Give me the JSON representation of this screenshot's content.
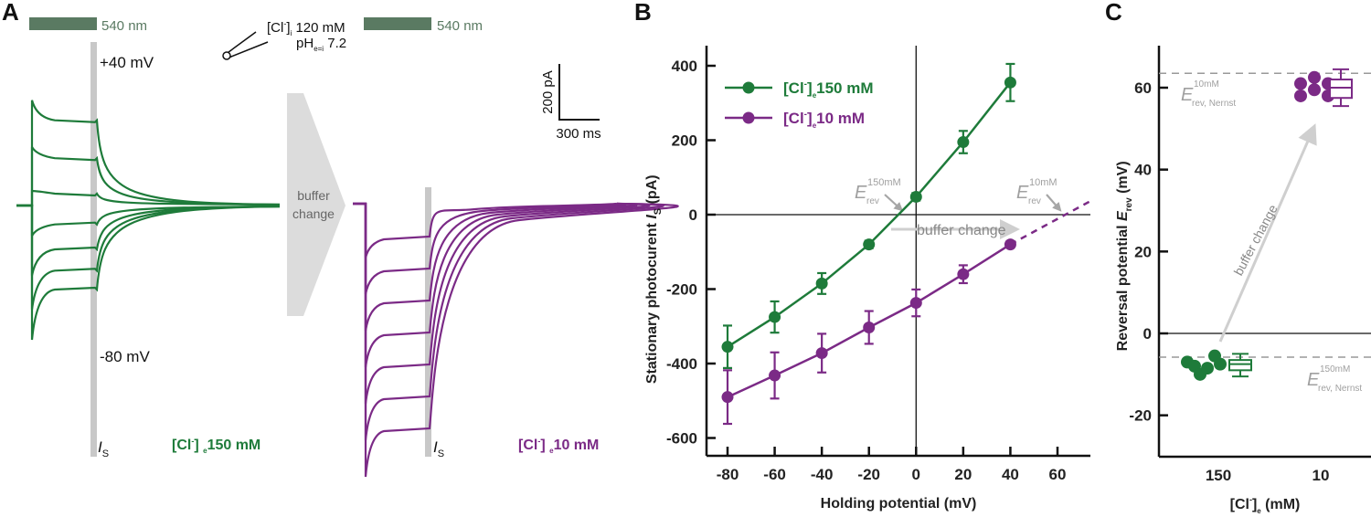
{
  "colors": {
    "green": "#1e7b3a",
    "purple": "#7b2a86",
    "light_bar": "#5a7a62",
    "grey_annot": "#a6a6a6",
    "grey_shade": "#c8c8c8",
    "arrow_fill": "#dcdcdc"
  },
  "panel_a": {
    "letter": "A",
    "light_label_1": "540 nm",
    "light_label_2": "540 nm",
    "pipette_line1_pre": "[Cl",
    "pipette_line1_sup": "-",
    "pipette_line1_mid": "]",
    "pipette_line1_sub": "i",
    "pipette_line1_post": " 120 mM",
    "pipette_line2_pre": "pH",
    "pipette_line2_sub": "e=i",
    "pipette_line2_post": " 7.2",
    "label_plus40": "+40 mV",
    "label_minus80": "-80 mV",
    "scale_y_label": "200 pA",
    "scale_x_label": "300 ms",
    "buffer_change_line1": "buffer",
    "buffer_change_line2": "change",
    "is_label": "I",
    "is_sub": "S",
    "cond1_pre": "[Cl",
    "cond1_sup": "-",
    "cond1_mid": "] ",
    "cond1_sub": "e",
    "cond1_post": "150 mM",
    "cond2_pre": "[Cl",
    "cond2_sup": "-",
    "cond2_mid": "] ",
    "cond2_sub": "e",
    "cond2_post": "10 mM",
    "traces_150_steady_pA": [
      360,
      200,
      50,
      -80,
      -185,
      -275,
      -355
    ],
    "traces_10_steady_pA": [
      -80,
      -160,
      -235,
      -300,
      -370,
      -430,
      -490
    ],
    "holding_potentials_mV": [
      40,
      20,
      0,
      -20,
      -40,
      -60,
      -80
    ]
  },
  "chart_data": [
    {
      "type": "line",
      "panel": "B",
      "title": "",
      "xlabel": "Holding potential (mV)",
      "ylabel_pre": "Stationary photocurent ",
      "ylabel_italic": "I",
      "ylabel_sub": "S",
      "ylabel_post": " (pA)",
      "xlim": [
        -90,
        75
      ],
      "ylim": [
        -650,
        450
      ],
      "xticks": [
        -80,
        -60,
        -40,
        -20,
        0,
        20,
        40,
        60
      ],
      "yticks": [
        -600,
        -400,
        -200,
        0,
        200,
        400
      ],
      "legend_position": "top-left",
      "series": [
        {
          "name": "[Cl-]e 150 mM",
          "label_pre": "[Cl",
          "label_sup": "-",
          "label_mid": "]",
          "label_sub": "e",
          "label_post": "150 mM",
          "color_key": "green",
          "x": [
            -80,
            -60,
            -40,
            -20,
            0,
            20,
            40
          ],
          "y": [
            -355,
            -275,
            -185,
            -80,
            48,
            195,
            355
          ],
          "err": [
            57,
            42,
            28,
            10,
            10,
            30,
            50
          ]
        },
        {
          "name": "[Cl-]e 10 mM",
          "label_pre": "[Cl",
          "label_sup": "-",
          "label_mid": "]",
          "label_sub": "e",
          "label_post": "10 mM",
          "color_key": "purple",
          "x": [
            -80,
            -60,
            -40,
            -20,
            0,
            20,
            40
          ],
          "y": [
            -490,
            -432,
            -372,
            -303,
            -237,
            -160,
            -80
          ],
          "err": [
            72,
            62,
            52,
            44,
            36,
            24,
            8
          ],
          "extrapolation": {
            "x": [
              40,
              75
            ],
            "y": [
              -80,
              40
            ]
          }
        }
      ],
      "annotations": {
        "erev_150_text": "E",
        "erev_150_sup": "150mM",
        "erev_150_sub": "rev",
        "erev_150_x_mV": -5,
        "erev_10_text": "E",
        "erev_10_sup": "10mM",
        "erev_10_sub": "rev",
        "erev_10_x_mV": 62,
        "buffer_change": "buffer change"
      }
    },
    {
      "type": "scatter",
      "panel": "C",
      "xlabel_pre": "[Cl",
      "xlabel_sup": "-",
      "xlabel_mid": "]",
      "xlabel_sub": "e",
      "xlabel_post": " (mM)",
      "ylabel_pre": "Reversal potential ",
      "ylabel_italic": "E",
      "ylabel_sub": "rev",
      "ylabel_post": " (mV)",
      "ylim": [
        -30,
        70
      ],
      "yticks": [
        -20,
        0,
        20,
        40,
        60
      ],
      "categories": [
        "150",
        "10"
      ],
      "series": [
        {
          "category": "150",
          "color_key": "green",
          "points_mV": [
            -7,
            -8,
            -10,
            -8.5,
            -5.5,
            -7.5
          ],
          "box": {
            "min": -10.5,
            "q1": -9,
            "median": -7.5,
            "q3": -6.5,
            "max": -5
          }
        },
        {
          "category": "10",
          "color_key": "purple",
          "points_mV": [
            61,
            62.5,
            61,
            58,
            59.5,
            58
          ],
          "box": {
            "min": 55.5,
            "q1": 57.5,
            "median": 60,
            "q3": 62,
            "max": 64.5
          }
        }
      ],
      "nernst": {
        "e10_mV": 63.5,
        "e150_mV": -5.8,
        "label_main": "E",
        "label_10_sup": "10mM",
        "label_150_sup": "150mM",
        "label_sub": "rev, Nernst"
      },
      "annotation": "buffer change"
    }
  ]
}
